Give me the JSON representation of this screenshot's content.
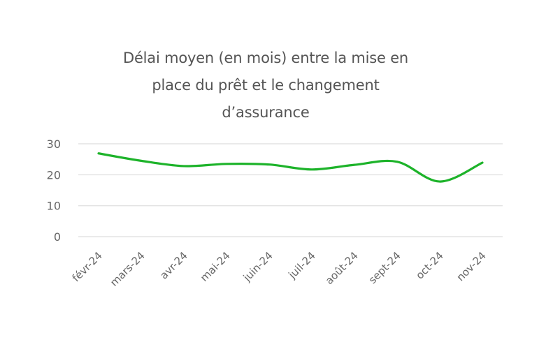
{
  "chart_data": {
    "type": "line",
    "title": "Délai moyen (en mois) entre la mise en place du prêt et le changement d’assurance",
    "title_lines": [
      "Délai moyen (en mois) entre la mise en",
      "place du prêt et le changement",
      "d’assurance"
    ],
    "xlabel": "",
    "ylabel": "",
    "categories": [
      "févr-24",
      "mars-24",
      "avr-24",
      "mai-24",
      "juin-24",
      "juil-24",
      "août-24",
      "sept-24",
      "oct-24",
      "nov-24"
    ],
    "series": [
      {
        "name": "Délai moyen (mois)",
        "color": "#1db32a",
        "values": [
          26.9,
          24.5,
          22.8,
          23.5,
          23.3,
          21.7,
          23.2,
          24.2,
          17.8,
          23.9
        ]
      }
    ],
    "yticks": [
      0,
      10,
      20,
      30
    ],
    "ylim": [
      0,
      30
    ],
    "grid": true,
    "legend": "none",
    "smooth": true
  },
  "colors": {
    "line": "#1db32a",
    "grid": "#e3e3e3",
    "text": "#555555"
  }
}
